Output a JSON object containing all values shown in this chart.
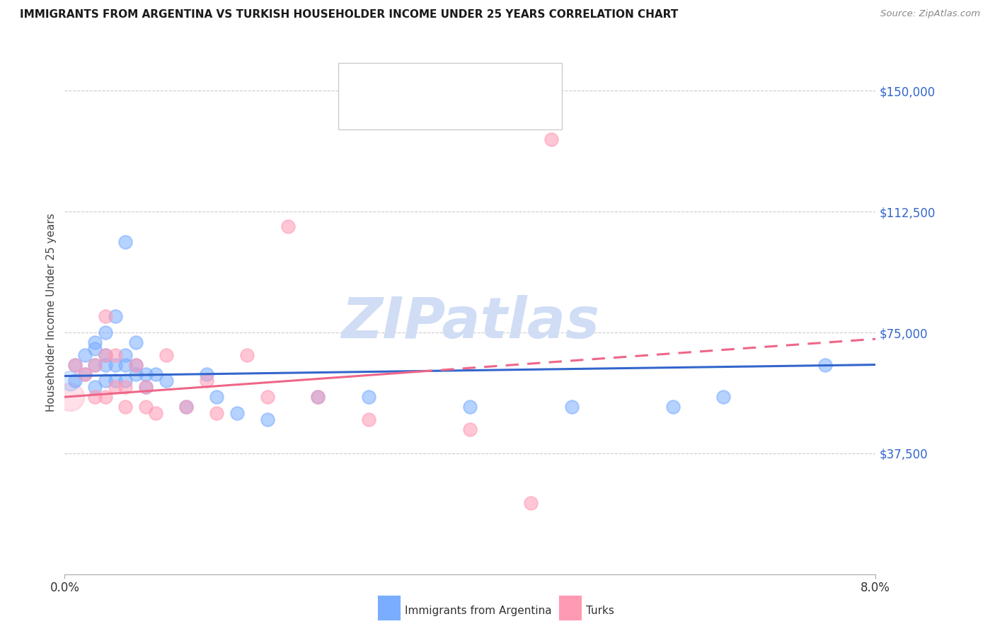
{
  "title": "IMMIGRANTS FROM ARGENTINA VS TURKISH HOUSEHOLDER INCOME UNDER 25 YEARS CORRELATION CHART",
  "source": "Source: ZipAtlas.com",
  "ylabel": "Householder Income Under 25 years",
  "xlim": [
    0.0,
    0.08
  ],
  "ylim": [
    0,
    162500
  ],
  "yticks": [
    0,
    37500,
    75000,
    112500,
    150000
  ],
  "ytick_labels": [
    "",
    "$37,500",
    "$75,000",
    "$112,500",
    "$150,000"
  ],
  "argentina_color": "#7aadff",
  "turks_color": "#ff9ab5",
  "argentina_line_color": "#3366cc",
  "turks_line_color": "#ee6688",
  "watermark_color": "#d0ddf5",
  "background_color": "#ffffff",
  "grid_color": "#cccccc",
  "text_blue": "#3366cc",
  "arg_x": [
    0.001,
    0.001,
    0.002,
    0.002,
    0.003,
    0.003,
    0.003,
    0.003,
    0.004,
    0.004,
    0.004,
    0.004,
    0.005,
    0.005,
    0.005,
    0.006,
    0.006,
    0.006,
    0.006,
    0.007,
    0.007,
    0.007,
    0.008,
    0.008,
    0.009,
    0.01,
    0.012,
    0.014,
    0.015,
    0.017,
    0.02,
    0.025,
    0.03,
    0.04,
    0.05,
    0.06,
    0.065,
    0.075
  ],
  "arg_y": [
    60000,
    65000,
    62000,
    68000,
    58000,
    65000,
    70000,
    72000,
    60000,
    65000,
    68000,
    75000,
    60000,
    65000,
    80000,
    60000,
    65000,
    68000,
    103000,
    62000,
    65000,
    72000,
    58000,
    62000,
    62000,
    60000,
    52000,
    62000,
    55000,
    50000,
    48000,
    55000,
    55000,
    52000,
    52000,
    52000,
    55000,
    65000
  ],
  "turk_x": [
    0.001,
    0.002,
    0.003,
    0.003,
    0.004,
    0.004,
    0.004,
    0.005,
    0.005,
    0.006,
    0.006,
    0.007,
    0.008,
    0.008,
    0.009,
    0.01,
    0.012,
    0.014,
    0.015,
    0.018,
    0.02,
    0.022,
    0.025,
    0.03,
    0.04,
    0.046,
    0.048
  ],
  "turk_y": [
    65000,
    62000,
    55000,
    65000,
    55000,
    68000,
    80000,
    58000,
    68000,
    52000,
    58000,
    65000,
    52000,
    58000,
    50000,
    68000,
    52000,
    60000,
    50000,
    68000,
    55000,
    108000,
    55000,
    48000,
    45000,
    22000,
    135000
  ]
}
